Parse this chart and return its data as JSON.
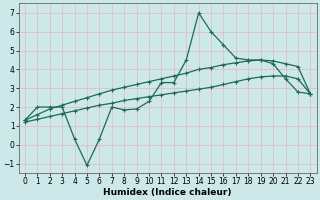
{
  "xlabel": "Humidex (Indice chaleur)",
  "xlim": [
    -0.5,
    23.5
  ],
  "ylim": [
    -1.5,
    7.5
  ],
  "xticks": [
    0,
    1,
    2,
    3,
    4,
    5,
    6,
    7,
    8,
    9,
    10,
    11,
    12,
    13,
    14,
    15,
    16,
    17,
    18,
    19,
    20,
    21,
    22,
    23
  ],
  "yticks": [
    -1,
    0,
    1,
    2,
    3,
    4,
    5,
    6,
    7
  ],
  "bg_color": "#cce8e8",
  "grid_color": "#e8b8b8",
  "line_color": "#1a6b5a",
  "line1_x": [
    0,
    1,
    2,
    3,
    4,
    5,
    6,
    7,
    8,
    9,
    10,
    11,
    12,
    13,
    14,
    15,
    16,
    17,
    18,
    19,
    20,
    21,
    22,
    23
  ],
  "line1_y": [
    1.3,
    2.0,
    2.0,
    2.0,
    0.3,
    -1.1,
    0.3,
    2.0,
    1.85,
    1.9,
    2.3,
    3.3,
    3.3,
    4.5,
    7.0,
    6.0,
    5.3,
    4.6,
    4.5,
    4.5,
    4.3,
    3.5,
    2.8,
    2.7
  ],
  "line2_x": [
    0,
    1,
    2,
    3,
    4,
    5,
    6,
    7,
    8,
    9,
    10,
    11,
    12,
    13,
    14,
    15,
    16,
    17,
    18,
    19,
    20,
    21,
    22,
    23
  ],
  "line2_y": [
    1.3,
    1.6,
    1.9,
    2.1,
    2.3,
    2.5,
    2.7,
    2.9,
    3.05,
    3.2,
    3.35,
    3.5,
    3.65,
    3.8,
    4.0,
    4.1,
    4.25,
    4.35,
    4.45,
    4.5,
    4.45,
    4.3,
    4.15,
    2.7
  ],
  "line3_x": [
    0,
    1,
    2,
    3,
    4,
    5,
    6,
    7,
    8,
    9,
    10,
    11,
    12,
    13,
    14,
    15,
    16,
    17,
    18,
    19,
    20,
    21,
    22,
    23
  ],
  "line3_y": [
    1.2,
    1.35,
    1.5,
    1.65,
    1.8,
    1.95,
    2.1,
    2.2,
    2.35,
    2.45,
    2.55,
    2.65,
    2.75,
    2.85,
    2.95,
    3.05,
    3.2,
    3.35,
    3.5,
    3.6,
    3.65,
    3.65,
    3.5,
    2.7
  ],
  "marker": "+",
  "markersize": 3.5,
  "linewidth": 0.9,
  "tick_fontsize": 5.5,
  "label_fontsize": 6.5
}
